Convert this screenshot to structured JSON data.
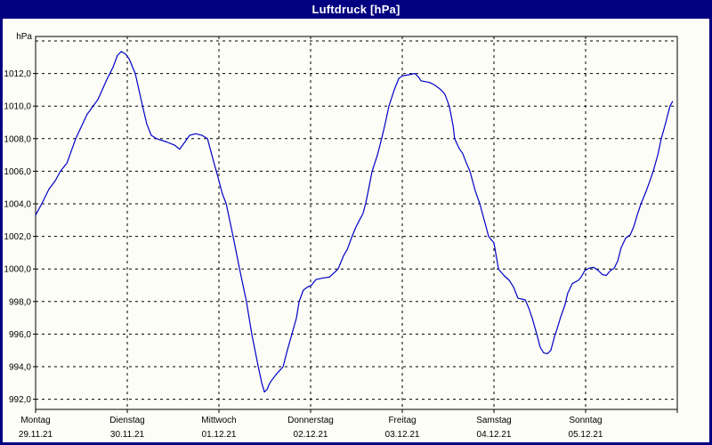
{
  "window": {
    "title": "Luftdruck [hPa]"
  },
  "colors": {
    "titlebar_bg": "#000080",
    "titlebar_text": "#ffffff",
    "window_border": "#000080",
    "content_bg": "#fbfdf6",
    "plot_border": "#000000",
    "grid": "#000000",
    "tick": "#000000",
    "axis_text": "#000000",
    "series_line": "#0000c8"
  },
  "chart_data": {
    "type": "line",
    "title": "Luftdruck [hPa]",
    "ylabel": "hPa",
    "xlabel": "",
    "grid": "dashed",
    "legend": "none",
    "y_axis": {
      "unit": "hPa",
      "ticks": [
        1012,
        1010,
        1008,
        1006,
        1004,
        1002,
        1000,
        998,
        996,
        994,
        992
      ],
      "tick_labels": [
        "1012,0",
        "1010,0",
        "1008,0",
        "1006,0",
        "1004,0",
        "1002,0",
        "1000,0",
        "998,0",
        "996,0",
        "994,0",
        "992,0"
      ],
      "top_gridline_value": 1014,
      "bottom_gridline_value": 992,
      "gridline_step": 2,
      "ylim_displayed": [
        992,
        1012
      ]
    },
    "x_axis": {
      "range_days": 7,
      "range_hours": [
        0,
        168
      ],
      "days": [
        {
          "name": "Montag",
          "date": "29.11.21"
        },
        {
          "name": "Dienstag",
          "date": "30.11.21"
        },
        {
          "name": "Mittwoch",
          "date": "01.12.21"
        },
        {
          "name": "Donnerstag",
          "date": "02.12.21"
        },
        {
          "name": "Freitag",
          "date": "03.12.21"
        },
        {
          "name": "Samstag",
          "date": "04.12.21"
        },
        {
          "name": "Sonntag",
          "date": "05.12.21"
        }
      ]
    },
    "series": [
      {
        "name": "Luftdruck",
        "unit": "hPa",
        "points_hours_hpa": [
          [
            0,
            1003.3
          ],
          [
            1.6,
            1004
          ],
          [
            3.5,
            1004.9
          ],
          [
            5.1,
            1005.4
          ],
          [
            6.5,
            1006
          ],
          [
            8.2,
            1006.5
          ],
          [
            10.5,
            1008
          ],
          [
            13.5,
            1009.5
          ],
          [
            16.3,
            1010.4
          ],
          [
            18.6,
            1011.6
          ],
          [
            20.3,
            1012.4
          ],
          [
            21.4,
            1013.1
          ],
          [
            22.4,
            1013.35
          ],
          [
            23.5,
            1013.2
          ],
          [
            24.5,
            1012.9
          ],
          [
            26.1,
            1012
          ],
          [
            28,
            1010
          ],
          [
            29.1,
            1008.9
          ],
          [
            30.3,
            1008.2
          ],
          [
            31.7,
            1008
          ],
          [
            34.3,
            1007.8
          ],
          [
            36.4,
            1007.6
          ],
          [
            37.7,
            1007.35
          ],
          [
            39.1,
            1007.8
          ],
          [
            40.3,
            1008.2
          ],
          [
            41.9,
            1008.3
          ],
          [
            43.6,
            1008.2
          ],
          [
            45,
            1008
          ],
          [
            46.6,
            1006.6
          ],
          [
            47.8,
            1005.6
          ],
          [
            48.9,
            1004.6
          ],
          [
            49.9,
            1004
          ],
          [
            51.7,
            1002
          ],
          [
            53.4,
            1000
          ],
          [
            55.2,
            998
          ],
          [
            56.6,
            996
          ],
          [
            58.3,
            994
          ],
          [
            59.2,
            993
          ],
          [
            59.9,
            992.45
          ],
          [
            60.6,
            992.6
          ],
          [
            61.3,
            993
          ],
          [
            62.9,
            993.5
          ],
          [
            64.8,
            994
          ],
          [
            65.9,
            995
          ],
          [
            67.1,
            996
          ],
          [
            68.3,
            997
          ],
          [
            69,
            998
          ],
          [
            70.1,
            998.7
          ],
          [
            71.3,
            998.9
          ],
          [
            72.2,
            999
          ],
          [
            73.4,
            999.35
          ],
          [
            75.3,
            999.45
          ],
          [
            76.9,
            999.5
          ],
          [
            78.3,
            999.8
          ],
          [
            79.2,
            1000
          ],
          [
            80.6,
            1000.8
          ],
          [
            81.6,
            1001.2
          ],
          [
            82.7,
            1001.9
          ],
          [
            83.9,
            1002.6
          ],
          [
            84.8,
            1003
          ],
          [
            85.7,
            1003.4
          ],
          [
            86.4,
            1004
          ],
          [
            87.1,
            1004.8
          ],
          [
            88.1,
            1006
          ],
          [
            89.5,
            1007
          ],
          [
            90.6,
            1008
          ],
          [
            91.6,
            1009
          ],
          [
            92.5,
            1010
          ],
          [
            93.9,
            1011
          ],
          [
            95.1,
            1011.7
          ],
          [
            96,
            1011.85
          ],
          [
            97.2,
            1011.9
          ],
          [
            98.3,
            1011.95
          ],
          [
            99.3,
            1012
          ],
          [
            100.2,
            1011.8
          ],
          [
            100.9,
            1011.55
          ],
          [
            102.1,
            1011.5
          ],
          [
            103.2,
            1011.45
          ],
          [
            104.4,
            1011.3
          ],
          [
            105.6,
            1011.1
          ],
          [
            106.5,
            1010.9
          ],
          [
            107.2,
            1010.7
          ],
          [
            108.3,
            1010
          ],
          [
            109.3,
            1008.8
          ],
          [
            109.7,
            1008
          ],
          [
            110.9,
            1007.4
          ],
          [
            111.8,
            1007.1
          ],
          [
            112.8,
            1006.5
          ],
          [
            113.7,
            1006
          ],
          [
            115.1,
            1004.8
          ],
          [
            116.3,
            1004
          ],
          [
            117.7,
            1002.8
          ],
          [
            118.6,
            1002
          ],
          [
            120,
            1001.6
          ],
          [
            121.2,
            1000
          ],
          [
            122.6,
            999.6
          ],
          [
            124,
            999.3
          ],
          [
            125.1,
            998.9
          ],
          [
            126.3,
            998.2
          ],
          [
            128.2,
            998.1
          ],
          [
            129.1,
            997.6
          ],
          [
            130,
            997
          ],
          [
            131.2,
            996
          ],
          [
            132.1,
            995.2
          ],
          [
            133,
            994.85
          ],
          [
            134,
            994.8
          ],
          [
            134.9,
            995
          ],
          [
            135.8,
            995.8
          ],
          [
            136.5,
            996.3
          ],
          [
            137.4,
            997
          ],
          [
            138.6,
            997.8
          ],
          [
            139.3,
            998.5
          ],
          [
            140.5,
            999.1
          ],
          [
            142.1,
            999.3
          ],
          [
            142.8,
            999.5
          ],
          [
            143.8,
            999.9
          ],
          [
            144.9,
            1000.05
          ],
          [
            146.1,
            1000.1
          ],
          [
            147.3,
            999.9
          ],
          [
            148.4,
            999.65
          ],
          [
            149.4,
            999.6
          ],
          [
            150.5,
            999.9
          ],
          [
            151.5,
            1000.05
          ],
          [
            152.4,
            1000.5
          ],
          [
            153.3,
            1001.3
          ],
          [
            154.5,
            1001.9
          ],
          [
            155.7,
            1002.1
          ],
          [
            156.6,
            1002.6
          ],
          [
            157.5,
            1003.3
          ],
          [
            158.5,
            1004
          ],
          [
            159.9,
            1004.8
          ],
          [
            160.8,
            1005.4
          ],
          [
            161.7,
            1006
          ],
          [
            162.9,
            1007
          ],
          [
            163.8,
            1008
          ],
          [
            165,
            1009
          ],
          [
            166.1,
            1010
          ],
          [
            166.8,
            1010.3
          ]
        ]
      }
    ]
  }
}
